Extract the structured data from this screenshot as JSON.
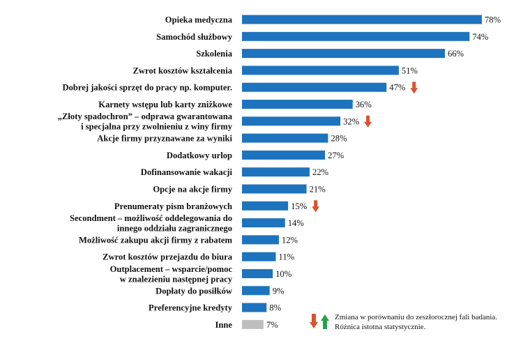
{
  "colors": {
    "bar": "#1e73be",
    "bar_other": "#bfbfbf",
    "arrow_down": "#d9532c",
    "arrow_up": "#27a04a"
  },
  "chart_data": {
    "type": "bar",
    "orientation": "horizontal",
    "unit": "%",
    "rows": [
      {
        "label_lines": [
          "Opieka medyczna"
        ],
        "value": 78,
        "value_label": "78%",
        "change": null
      },
      {
        "label_lines": [
          "Samochód służbowy"
        ],
        "value": 74,
        "value_label": "74%",
        "change": null
      },
      {
        "label_lines": [
          "Szkolenia"
        ],
        "value": 66,
        "value_label": "66%",
        "change": null
      },
      {
        "label_lines": [
          "Zwrot kosztów kształcenia"
        ],
        "value": 51,
        "value_label": "51%",
        "change": null
      },
      {
        "label_lines": [
          "Dobrej jakości sprzęt do pracy np. komputer."
        ],
        "value": 47,
        "value_label": "47%",
        "change": "down"
      },
      {
        "label_lines": [
          "Karnety wstępu lub karty zniżkowe"
        ],
        "value": 36,
        "value_label": "36%",
        "change": null
      },
      {
        "label_lines": [
          "„Złoty spadochron” – odprawa gwarantowana",
          "i specjalna przy zwolnieniu z winy firmy"
        ],
        "value": 32,
        "value_label": "32%",
        "change": "down"
      },
      {
        "label_lines": [
          "Akcje firmy przyznawane za wyniki"
        ],
        "value": 28,
        "value_label": "28%",
        "change": null
      },
      {
        "label_lines": [
          "Dodatkowy urlop"
        ],
        "value": 27,
        "value_label": "27%",
        "change": null
      },
      {
        "label_lines": [
          "Dofinansowanie wakacji"
        ],
        "value": 22,
        "value_label": "22%",
        "change": null
      },
      {
        "label_lines": [
          "Opcje na akcje firmy"
        ],
        "value": 21,
        "value_label": "21%",
        "change": null
      },
      {
        "label_lines": [
          "Prenumeraty pism branżowych"
        ],
        "value": 15,
        "value_label": "15%",
        "change": "down"
      },
      {
        "label_lines": [
          "Secondment – możliwość oddelegowania do",
          "innego oddziału zagranicznego"
        ],
        "value": 14,
        "value_label": "14%",
        "change": null
      },
      {
        "label_lines": [
          "Możliwość zakupu akcji firmy z rabatem"
        ],
        "value": 12,
        "value_label": "12%",
        "change": null
      },
      {
        "label_lines": [
          "Zwrot kosztów przejazdu do biura"
        ],
        "value": 11,
        "value_label": "11%",
        "change": null
      },
      {
        "label_lines": [
          "Outplacement – wsparcie/pomoc",
          "w znalezieniu następnej pracy"
        ],
        "value": 10,
        "value_label": "10%",
        "change": null
      },
      {
        "label_lines": [
          "Dopłaty do posiłków"
        ],
        "value": 9,
        "value_label": "9%",
        "change": null
      },
      {
        "label_lines": [
          "Preferencyjne kredyty"
        ],
        "value": 8,
        "value_label": "8%",
        "change": null
      },
      {
        "label_lines": [
          "Inne"
        ],
        "value": 7,
        "value_label": "7%",
        "change": null,
        "highlight": "other"
      }
    ],
    "legend": {
      "line1": "Zmiana w porównaniu do zeszłorocznej fali badania.",
      "line2": "Różnica istotna statystycznie."
    }
  }
}
